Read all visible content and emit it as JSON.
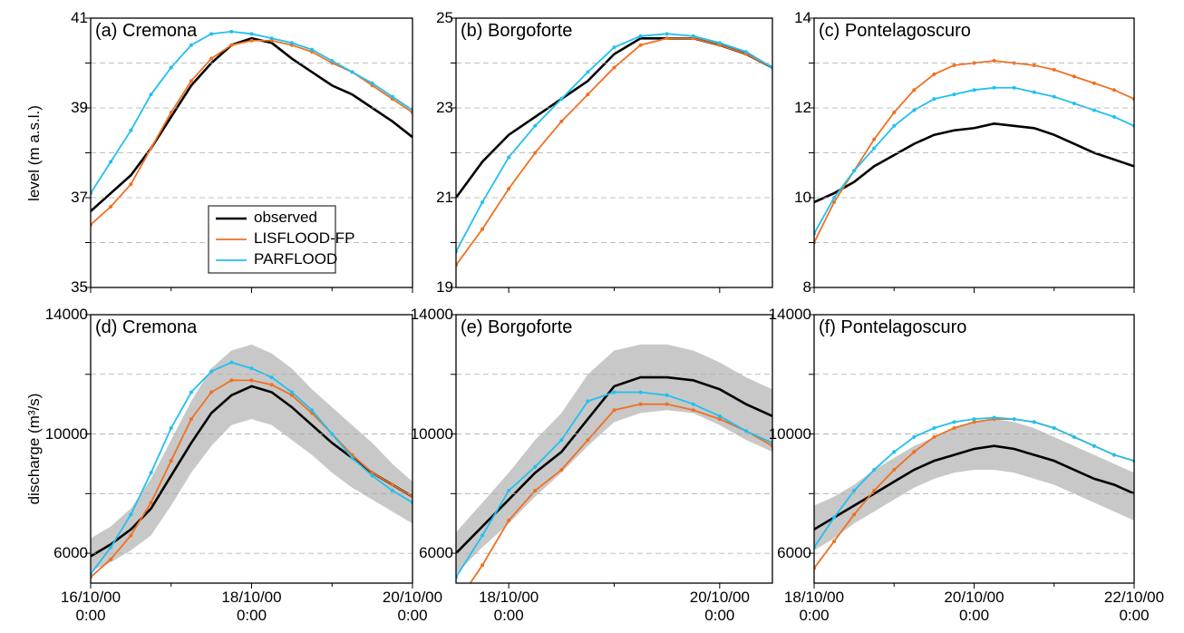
{
  "chart_data": [
    {
      "type": "line",
      "title": "(a) Cremona",
      "ylabel": "level (m a.s.l.)",
      "x": [
        "2000-10-16T00:00",
        "2000-10-16T06:00",
        "2000-10-16T12:00",
        "2000-10-16T18:00",
        "2000-10-17T00:00",
        "2000-10-17T06:00",
        "2000-10-17T12:00",
        "2000-10-17T18:00",
        "2000-10-18T00:00",
        "2000-10-18T06:00",
        "2000-10-18T12:00",
        "2000-10-18T18:00",
        "2000-10-19T00:00",
        "2000-10-19T06:00",
        "2000-10-19T12:00",
        "2000-10-19T18:00",
        "2000-10-20T00:00"
      ],
      "xlim": [
        "2000-10-16T00:00",
        "2000-10-20T00:00"
      ],
      "xticks": [
        "2000-10-16T00:00",
        "2000-10-18T00:00",
        "2000-10-20T00:00"
      ],
      "xminor": [
        "2000-10-17T00:00",
        "2000-10-19T00:00"
      ],
      "ylim": [
        35,
        41
      ],
      "yticks": [
        35,
        37,
        39,
        41
      ],
      "yminor": [
        36,
        38,
        40
      ],
      "grid": true,
      "legend": "lower-right",
      "series": [
        {
          "name": "observed",
          "color": "#000000",
          "values": [
            36.7,
            37.1,
            37.5,
            38.1,
            38.8,
            39.5,
            40.0,
            40.4,
            40.55,
            40.45,
            40.1,
            39.8,
            39.5,
            39.3,
            39.0,
            38.7,
            38.35
          ]
        },
        {
          "name": "LISFLOOD-FP",
          "color": "#f07020",
          "marker": "dot",
          "values": [
            36.4,
            36.8,
            37.3,
            38.1,
            38.9,
            39.6,
            40.1,
            40.4,
            40.5,
            40.5,
            40.4,
            40.25,
            40.0,
            39.8,
            39.5,
            39.2,
            38.9
          ]
        },
        {
          "name": "PARFLOOD",
          "color": "#20c0f0",
          "marker": "dot",
          "values": [
            37.1,
            37.8,
            38.5,
            39.3,
            39.9,
            40.4,
            40.65,
            40.7,
            40.65,
            40.55,
            40.45,
            40.3,
            40.05,
            39.8,
            39.55,
            39.25,
            38.95
          ]
        }
      ]
    },
    {
      "type": "line",
      "title": "(b) Borgoforte",
      "x": [
        "2000-10-17T12:00",
        "2000-10-17T18:00",
        "2000-10-18T00:00",
        "2000-10-18T06:00",
        "2000-10-18T12:00",
        "2000-10-18T18:00",
        "2000-10-19T00:00",
        "2000-10-19T06:00",
        "2000-10-19T12:00",
        "2000-10-19T18:00",
        "2000-10-20T00:00",
        "2000-10-20T06:00",
        "2000-10-20T12:00"
      ],
      "xlim": [
        "2000-10-17T12:00",
        "2000-10-20T12:00"
      ],
      "xticks": [
        "2000-10-18T00:00",
        "2000-10-20T00:00"
      ],
      "xminor": [
        "2000-10-19T00:00"
      ],
      "ylim": [
        19,
        25
      ],
      "yticks": [
        19,
        21,
        23,
        25
      ],
      "yminor": [
        20,
        22,
        24
      ],
      "grid": true,
      "series": [
        {
          "color": "#000000",
          "values": [
            21.0,
            21.8,
            22.4,
            22.8,
            23.2,
            23.6,
            24.2,
            24.55,
            24.55,
            24.55,
            24.4,
            24.2,
            23.9
          ]
        },
        {
          "color": "#f07020",
          "marker": "dot",
          "values": [
            19.5,
            20.3,
            21.2,
            22.0,
            22.7,
            23.3,
            23.9,
            24.4,
            24.55,
            24.55,
            24.4,
            24.2,
            23.9
          ]
        },
        {
          "color": "#20c0f0",
          "marker": "dot",
          "values": [
            19.8,
            20.9,
            21.9,
            22.6,
            23.2,
            23.8,
            24.35,
            24.6,
            24.65,
            24.6,
            24.45,
            24.25,
            23.9
          ]
        }
      ]
    },
    {
      "type": "line",
      "title": "(c) Pontelagoscuro",
      "x": [
        "2000-10-18T00:00",
        "2000-10-18T06:00",
        "2000-10-18T12:00",
        "2000-10-18T18:00",
        "2000-10-19T00:00",
        "2000-10-19T06:00",
        "2000-10-19T12:00",
        "2000-10-19T18:00",
        "2000-10-20T00:00",
        "2000-10-20T06:00",
        "2000-10-20T12:00",
        "2000-10-20T18:00",
        "2000-10-21T00:00",
        "2000-10-21T06:00",
        "2000-10-21T12:00",
        "2000-10-21T18:00",
        "2000-10-22T00:00"
      ],
      "xlim": [
        "2000-10-18T00:00",
        "2000-10-22T00:00"
      ],
      "xticks": [
        "2000-10-18T00:00",
        "2000-10-20T00:00",
        "2000-10-22T00:00"
      ],
      "xminor": [
        "2000-10-19T00:00",
        "2000-10-21T00:00"
      ],
      "ylim": [
        8,
        14
      ],
      "yticks": [
        8,
        10,
        12,
        14
      ],
      "yminor": [
        9,
        11,
        13
      ],
      "grid": true,
      "series": [
        {
          "color": "#000000",
          "values": [
            9.9,
            10.1,
            10.35,
            10.7,
            10.95,
            11.2,
            11.4,
            11.5,
            11.55,
            11.65,
            11.6,
            11.55,
            11.4,
            11.2,
            11.0,
            10.85,
            10.7
          ]
        },
        {
          "color": "#f07020",
          "marker": "dot",
          "values": [
            9.0,
            9.9,
            10.6,
            11.3,
            11.9,
            12.4,
            12.75,
            12.95,
            13.0,
            13.05,
            13.0,
            12.95,
            12.85,
            12.7,
            12.55,
            12.4,
            12.2
          ]
        },
        {
          "color": "#20c0f0",
          "marker": "dot",
          "values": [
            9.2,
            10.0,
            10.6,
            11.1,
            11.6,
            11.95,
            12.2,
            12.3,
            12.4,
            12.45,
            12.45,
            12.35,
            12.25,
            12.1,
            11.95,
            11.8,
            11.6
          ]
        }
      ]
    },
    {
      "type": "line",
      "title": "(d) Cremona",
      "ylabel": "discharge (m³/s)",
      "x": [
        "2000-10-16T00:00",
        "2000-10-16T06:00",
        "2000-10-16T12:00",
        "2000-10-16T18:00",
        "2000-10-17T00:00",
        "2000-10-17T06:00",
        "2000-10-17T12:00",
        "2000-10-17T18:00",
        "2000-10-18T00:00",
        "2000-10-18T06:00",
        "2000-10-18T12:00",
        "2000-10-18T18:00",
        "2000-10-19T00:00",
        "2000-10-19T06:00",
        "2000-10-19T12:00",
        "2000-10-19T18:00",
        "2000-10-20T00:00"
      ],
      "xlim": [
        "2000-10-16T00:00",
        "2000-10-20T00:00"
      ],
      "xticks": [
        {
          "value": "2000-10-16T00:00",
          "label": "16/10/00\n0:00"
        },
        {
          "value": "2000-10-18T00:00",
          "label": "18/10/00\n0:00"
        },
        {
          "value": "2000-10-20T00:00",
          "label": "20/10/00\n0:00"
        }
      ],
      "xminor": [
        "2000-10-17T00:00",
        "2000-10-19T00:00"
      ],
      "ylim": [
        5000,
        14000
      ],
      "yticks": [
        6000,
        10000,
        14000
      ],
      "yminor": [
        8000,
        12000
      ],
      "grid": true,
      "band": {
        "color": "#c8c8c8",
        "lower": [
          5400,
          5700,
          6100,
          6600,
          7600,
          8700,
          9600,
          10300,
          10500,
          10300,
          9800,
          9300,
          8700,
          8200,
          7800,
          7400,
          7000
        ],
        "upper": [
          6500,
          6900,
          7500,
          8500,
          9800,
          11100,
          12200,
          12800,
          13000,
          12700,
          12200,
          11500,
          10900,
          10300,
          9700,
          9000,
          8400
        ]
      },
      "series": [
        {
          "color": "#000000",
          "values": [
            5900,
            6300,
            6800,
            7500,
            8600,
            9700,
            10700,
            11300,
            11600,
            11400,
            10900,
            10300,
            9700,
            9200,
            8700,
            8300,
            7900
          ]
        },
        {
          "color": "#f07020",
          "marker": "dot",
          "values": [
            5200,
            5800,
            6600,
            7700,
            9100,
            10500,
            11400,
            11800,
            11800,
            11650,
            11300,
            10700,
            10000,
            9300,
            8700,
            8300,
            7900
          ]
        },
        {
          "color": "#20c0f0",
          "marker": "dot",
          "values": [
            5300,
            6200,
            7300,
            8700,
            10200,
            11400,
            12100,
            12400,
            12200,
            11900,
            11400,
            10800,
            10000,
            9200,
            8600,
            8100,
            7700
          ]
        }
      ]
    },
    {
      "type": "line",
      "title": "(e) Borgoforte",
      "x": [
        "2000-10-17T12:00",
        "2000-10-17T18:00",
        "2000-10-18T00:00",
        "2000-10-18T06:00",
        "2000-10-18T12:00",
        "2000-10-18T18:00",
        "2000-10-19T00:00",
        "2000-10-19T06:00",
        "2000-10-19T12:00",
        "2000-10-19T18:00",
        "2000-10-20T00:00",
        "2000-10-20T06:00",
        "2000-10-20T12:00"
      ],
      "xlim": [
        "2000-10-17T12:00",
        "2000-10-20T12:00"
      ],
      "xticks": [
        {
          "value": "2000-10-18T00:00",
          "label": "18/10/00\n0:00"
        },
        {
          "value": "2000-10-20T00:00",
          "label": "20/10/00\n0:00"
        }
      ],
      "xminor": [
        "2000-10-19T00:00"
      ],
      "ylim": [
        5000,
        14000
      ],
      "yticks": [
        6000,
        10000,
        14000
      ],
      "yminor": [
        8000,
        12000
      ],
      "grid": true,
      "band": {
        "color": "#c8c8c8",
        "lower": [
          5300,
          6200,
          7000,
          7900,
          8700,
          9600,
          10400,
          10700,
          10800,
          10700,
          10300,
          9800,
          9400
        ],
        "upper": [
          6700,
          7700,
          8700,
          9800,
          10700,
          12000,
          12800,
          13000,
          13000,
          12800,
          12400,
          11900,
          11500
        ]
      },
      "series": [
        {
          "color": "#000000",
          "values": [
            6000,
            6900,
            7800,
            8700,
            9400,
            10500,
            11600,
            11900,
            11900,
            11800,
            11500,
            11000,
            10600
          ]
        },
        {
          "color": "#f07020",
          "marker": "dot",
          "values": [
            4300,
            5600,
            7100,
            8100,
            8800,
            9800,
            10800,
            11000,
            11000,
            10800,
            10500,
            10100,
            9600
          ]
        },
        {
          "color": "#20c0f0",
          "marker": "dot",
          "values": [
            5200,
            6600,
            8100,
            8900,
            9800,
            11100,
            11400,
            11400,
            11300,
            11000,
            10600,
            10100,
            9700
          ]
        }
      ]
    },
    {
      "type": "line",
      "title": "(f) Pontelagoscuro",
      "x": [
        "2000-10-18T00:00",
        "2000-10-18T06:00",
        "2000-10-18T12:00",
        "2000-10-18T18:00",
        "2000-10-19T00:00",
        "2000-10-19T06:00",
        "2000-10-19T12:00",
        "2000-10-19T18:00",
        "2000-10-20T00:00",
        "2000-10-20T06:00",
        "2000-10-20T12:00",
        "2000-10-20T18:00",
        "2000-10-21T00:00",
        "2000-10-21T06:00",
        "2000-10-21T12:00",
        "2000-10-21T18:00",
        "2000-10-22T00:00"
      ],
      "xlim": [
        "2000-10-18T00:00",
        "2000-10-22T00:00"
      ],
      "xticks": [
        {
          "value": "2000-10-18T00:00",
          "label": "18/10/00\n0:00"
        },
        {
          "value": "2000-10-20T00:00",
          "label": "20/10/00\n0:00"
        },
        {
          "value": "2000-10-22T00:00",
          "label": "22/10/00\n0:00"
        }
      ],
      "xminor": [
        "2000-10-19T00:00",
        "2000-10-21T00:00"
      ],
      "ylim": [
        5000,
        14000
      ],
      "yticks": [
        6000,
        10000,
        14000
      ],
      "yminor": [
        8000,
        12000
      ],
      "grid": true,
      "band": {
        "color": "#c8c8c8",
        "lower": [
          6100,
          6500,
          7000,
          7400,
          7800,
          8200,
          8500,
          8700,
          8800,
          8800,
          8700,
          8500,
          8300,
          8000,
          7700,
          7400,
          7100
        ],
        "upper": [
          7600,
          7900,
          8300,
          8800,
          9200,
          9600,
          9900,
          10200,
          10400,
          10500,
          10400,
          10200,
          9900,
          9600,
          9300,
          9000,
          8700
        ]
      },
      "series": [
        {
          "color": "#000000",
          "values": [
            6800,
            7200,
            7600,
            8000,
            8400,
            8800,
            9100,
            9300,
            9500,
            9600,
            9500,
            9300,
            9100,
            8800,
            8500,
            8300,
            8000
          ]
        },
        {
          "color": "#f07020",
          "marker": "dot",
          "values": [
            5500,
            6400,
            7300,
            8100,
            8800,
            9400,
            9900,
            10200,
            10400,
            10500,
            10500,
            10400,
            10200,
            9900,
            9600,
            9300,
            9100
          ]
        },
        {
          "color": "#20c0f0",
          "marker": "dot",
          "values": [
            6200,
            7200,
            8100,
            8800,
            9400,
            9900,
            10200,
            10400,
            10500,
            10550,
            10500,
            10400,
            10200,
            9900,
            9600,
            9300,
            9100
          ]
        }
      ]
    }
  ]
}
